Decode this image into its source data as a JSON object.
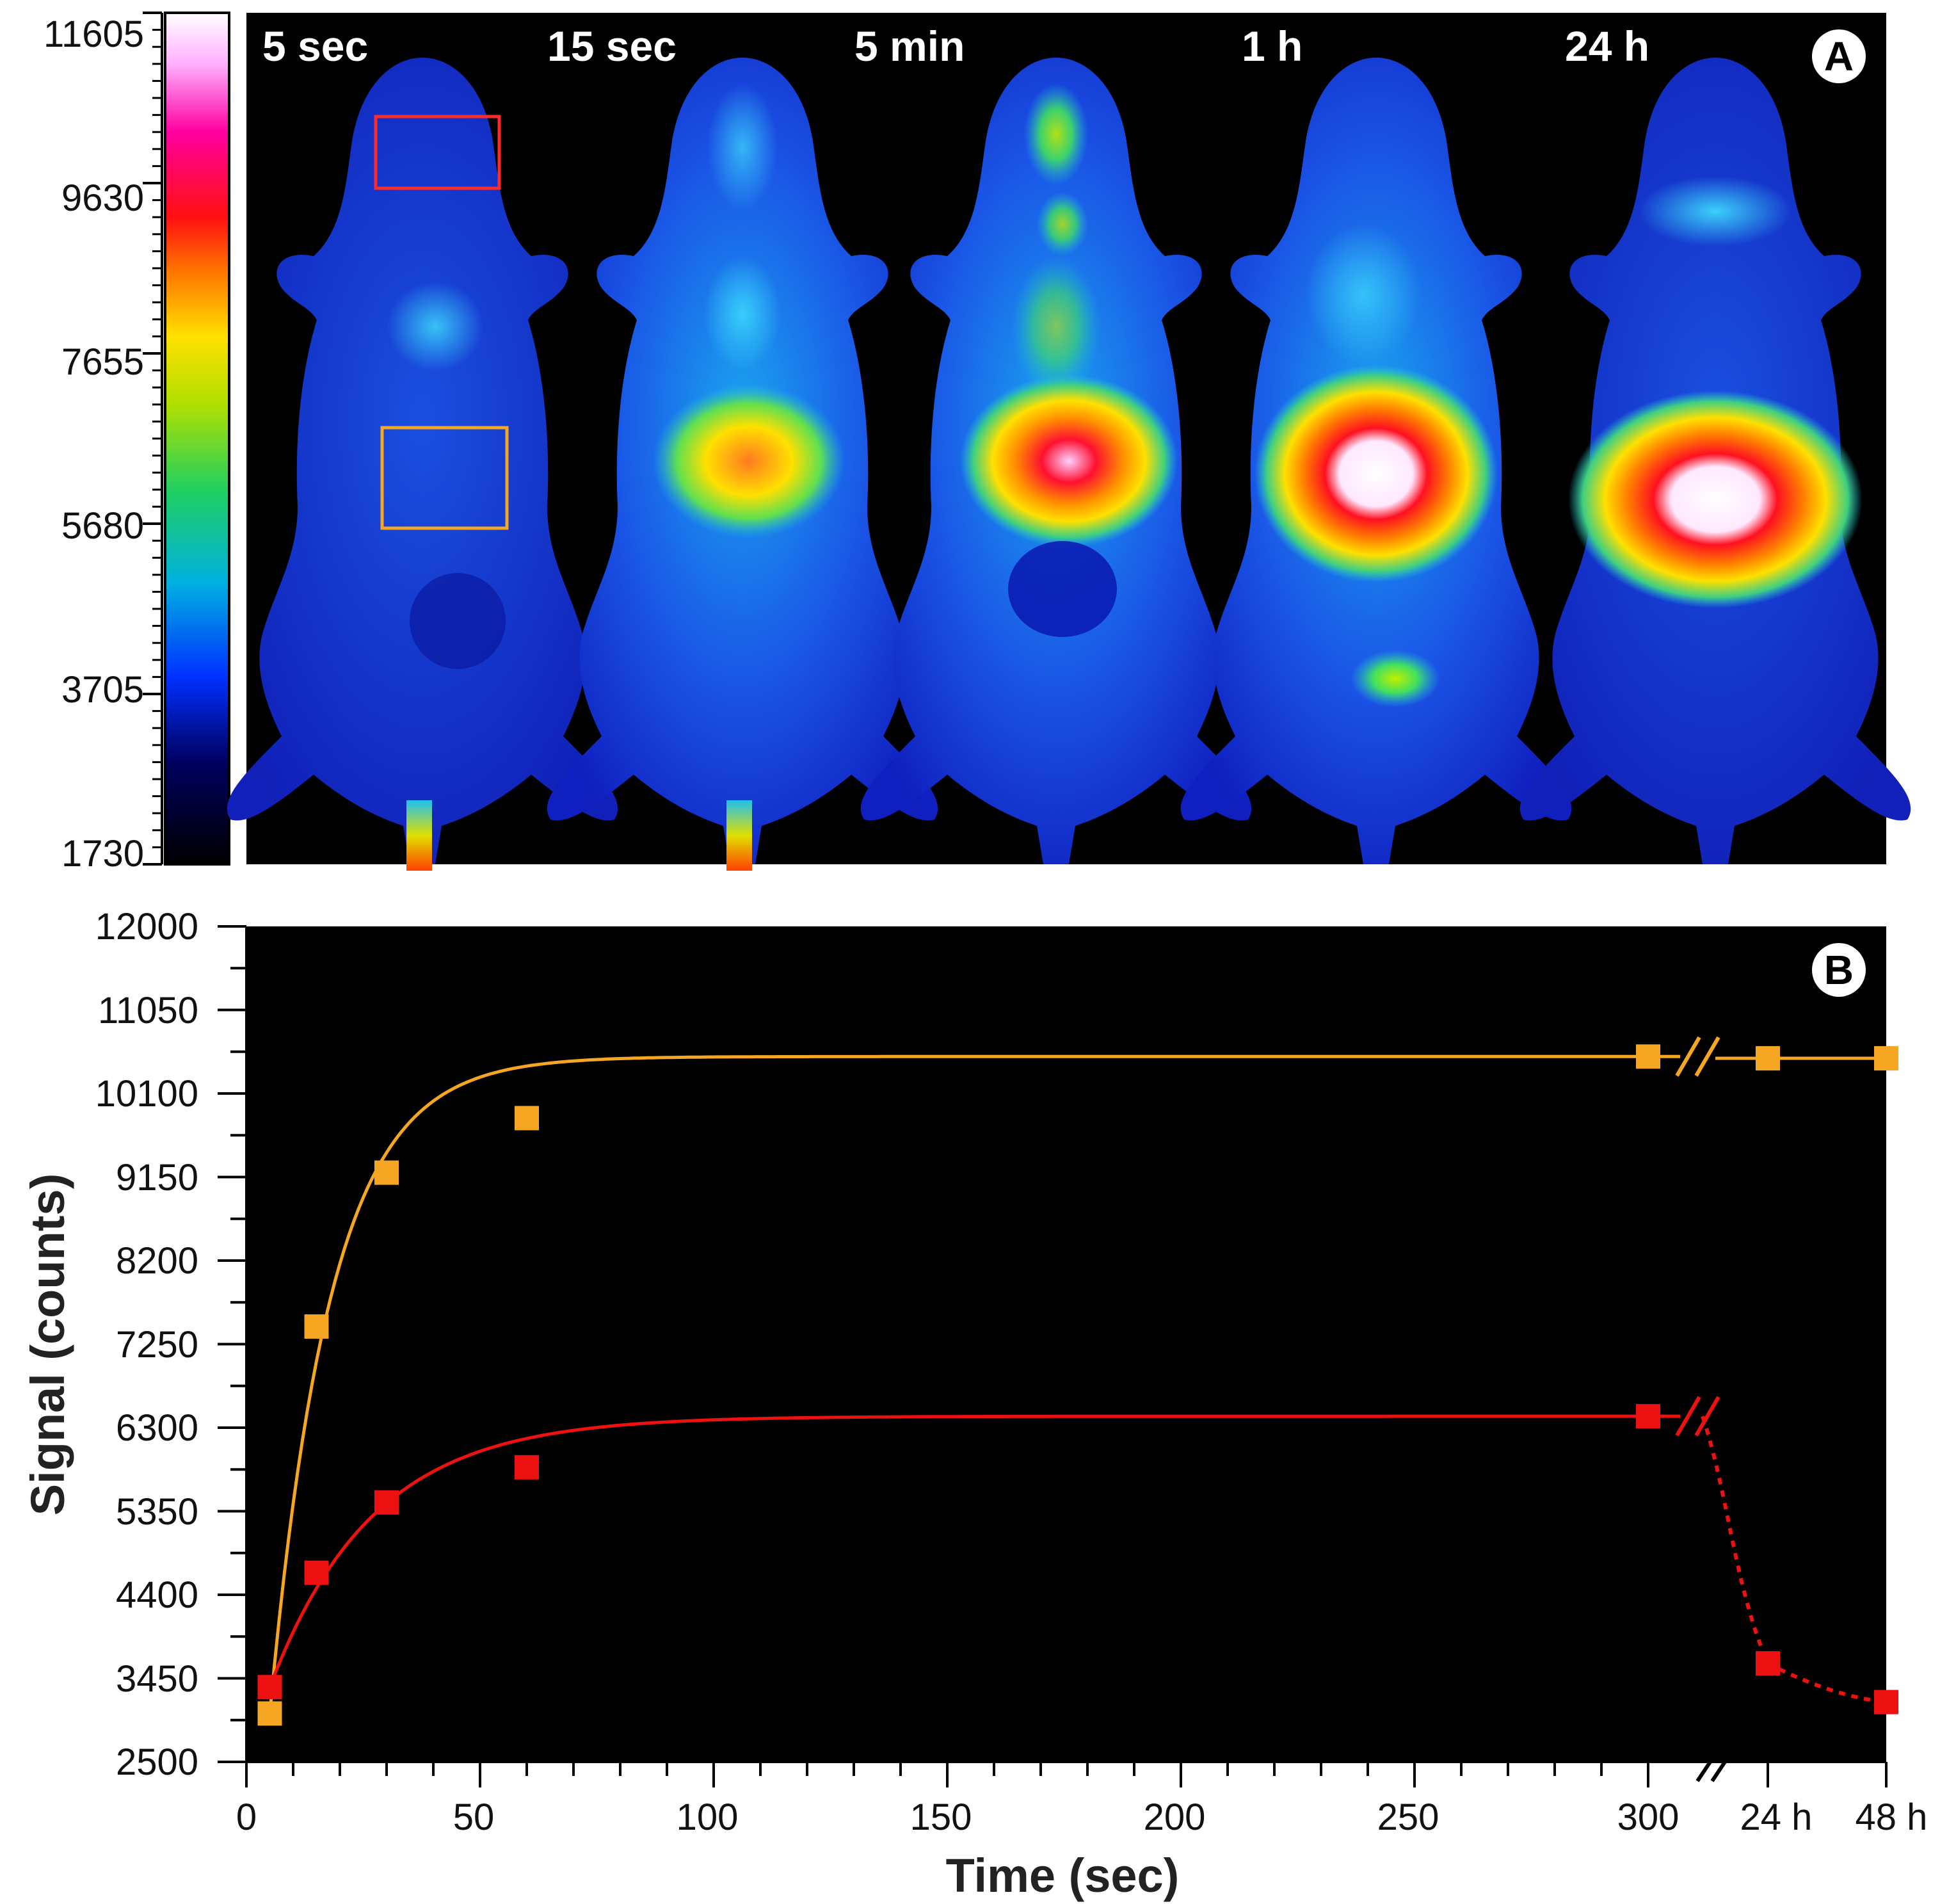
{
  "colorbar": {
    "min": 1730,
    "max": 11605,
    "tick_labels": [
      "11605",
      "9630",
      "7655",
      "5680",
      "3705",
      "1730"
    ]
  },
  "panel_a": {
    "badge": "A",
    "time_labels": [
      "5 sec",
      "15 sec",
      "5 min",
      "1 h",
      "24 h"
    ],
    "roi_colors": {
      "red_roi": "#ff2a2a",
      "orange_roi": "#f5a623"
    }
  },
  "chart_data": {
    "type": "line",
    "badge": "B",
    "xlabel": "Time (sec)",
    "ylabel": "Signal (counts)",
    "ylim": [
      2500,
      12000
    ],
    "xlim": [
      0,
      300
    ],
    "x_tick_labels": [
      "0",
      "50",
      "100",
      "150",
      "200",
      "250",
      "300",
      "24 h",
      "48 h"
    ],
    "y_tick_labels": [
      "12000",
      "11050",
      "10100",
      "9150",
      "8200",
      "7250",
      "6300",
      "5350",
      "4400",
      "3450",
      "2500"
    ],
    "series": [
      {
        "name": "orange ROI",
        "color": "#f5a623",
        "x": [
          5,
          15,
          30,
          60,
          300
        ],
        "values": [
          3050,
          7450,
          9200,
          9820,
          10520
        ],
        "post_break": [
          {
            "label": "24 h",
            "value": 10500
          },
          {
            "label": "48 h",
            "value": 10500
          }
        ]
      },
      {
        "name": "red ROI",
        "color": "#ee1111",
        "x": [
          5,
          15,
          30,
          60,
          300
        ],
        "values": [
          3350,
          4650,
          5450,
          5850,
          6430
        ],
        "post_break": [
          {
            "label": "24 h",
            "value": 3620
          },
          {
            "label": "48 h",
            "value": 3180
          }
        ]
      }
    ]
  }
}
